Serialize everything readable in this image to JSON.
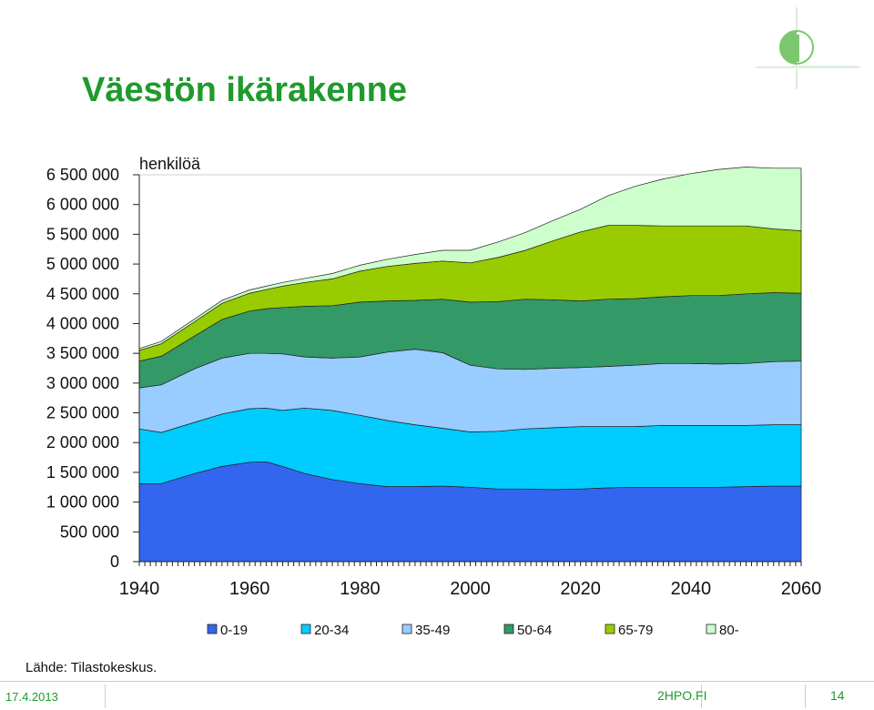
{
  "slide": {
    "title": "Väestön ikärakenne",
    "source": "Lähde: Tilastokeskus.",
    "date": "17.4.2013",
    "site": "2HPO.FI",
    "page": "14"
  },
  "chart_data": {
    "type": "area",
    "stacked": true,
    "ylabel": "henkilöä",
    "ylim": [
      0,
      6500000
    ],
    "yticks": [
      0,
      500000,
      1000000,
      1500000,
      2000000,
      2500000,
      3000000,
      3500000,
      4000000,
      4500000,
      5000000,
      5500000,
      6000000,
      6500000
    ],
    "ytick_labels": [
      "0",
      "500 000",
      "1 000 000",
      "1 500 000",
      "2 000 000",
      "2 500 000",
      "3 000 000",
      "3 500 000",
      "4 000 000",
      "4 500 000",
      "5 000 000",
      "5 500 000",
      "6 000 000",
      "6 500 000"
    ],
    "xlim": [
      1940,
      2060
    ],
    "xticks": [
      1940,
      1960,
      1980,
      2000,
      2020,
      2040,
      2060
    ],
    "legend_position": "bottom",
    "grid": false,
    "x": [
      1940,
      1944,
      1950,
      1955,
      1960,
      1963,
      1966,
      1970,
      1975,
      1980,
      1985,
      1990,
      1995,
      2000,
      2005,
      2010,
      2015,
      2020,
      2025,
      2030,
      2035,
      2040,
      2045,
      2050,
      2055,
      2060
    ],
    "series": [
      {
        "name": "0-19",
        "color": "#3366ee",
        "values": [
          1310000,
          1310000,
          1480000,
          1600000,
          1670000,
          1680000,
          1600000,
          1480000,
          1380000,
          1310000,
          1260000,
          1260000,
          1270000,
          1250000,
          1220000,
          1220000,
          1210000,
          1220000,
          1240000,
          1250000,
          1250000,
          1250000,
          1250000,
          1260000,
          1270000,
          1270000
        ]
      },
      {
        "name": "20-34",
        "color": "#00ccff",
        "values": [
          920000,
          860000,
          860000,
          880000,
          900000,
          900000,
          940000,
          1100000,
          1160000,
          1150000,
          1110000,
          1040000,
          970000,
          930000,
          970000,
          1010000,
          1040000,
          1050000,
          1030000,
          1020000,
          1040000,
          1040000,
          1040000,
          1030000,
          1030000,
          1030000
        ]
      },
      {
        "name": "35-49",
        "color": "#99ccff",
        "values": [
          690000,
          800000,
          900000,
          940000,
          930000,
          920000,
          950000,
          860000,
          880000,
          980000,
          1150000,
          1270000,
          1270000,
          1120000,
          1050000,
          1000000,
          1000000,
          990000,
          1010000,
          1030000,
          1040000,
          1040000,
          1030000,
          1040000,
          1060000,
          1070000
        ]
      },
      {
        "name": "50-64",
        "color": "#339966",
        "values": [
          450000,
          480000,
          550000,
          650000,
          710000,
          750000,
          780000,
          850000,
          880000,
          920000,
          860000,
          820000,
          900000,
          1060000,
          1130000,
          1180000,
          1150000,
          1120000,
          1130000,
          1120000,
          1120000,
          1140000,
          1150000,
          1170000,
          1160000,
          1140000
        ]
      },
      {
        "name": "65-79",
        "color": "#99cc00",
        "values": [
          180000,
          210000,
          240000,
          270000,
          300000,
          320000,
          360000,
          400000,
          450000,
          520000,
          580000,
          620000,
          640000,
          660000,
          740000,
          820000,
          990000,
          1160000,
          1240000,
          1230000,
          1190000,
          1170000,
          1170000,
          1140000,
          1070000,
          1050000
        ]
      },
      {
        "name": "80-",
        "color": "#ccffcc",
        "values": [
          30000,
          40000,
          45000,
          50000,
          55000,
          58000,
          60000,
          70000,
          90000,
          100000,
          120000,
          150000,
          180000,
          210000,
          260000,
          300000,
          340000,
          380000,
          500000,
          660000,
          790000,
          880000,
          950000,
          990000,
          1020000,
          1050000
        ]
      }
    ]
  }
}
